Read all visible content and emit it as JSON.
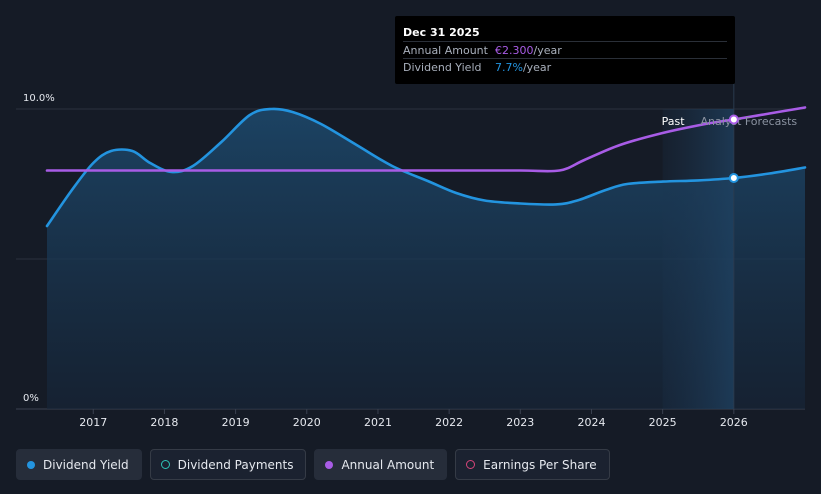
{
  "chart_data": {
    "type": "line",
    "y_tick_labels": [
      "10.0%",
      "0%"
    ],
    "ylim": [
      0,
      10
    ],
    "xlim": [
      2016.35,
      2027.0
    ],
    "x_tick_labels": [
      "2017",
      "2018",
      "2019",
      "2020",
      "2021",
      "2022",
      "2023",
      "2024",
      "2025",
      "2026"
    ],
    "x_tick_values": [
      2017,
      2018,
      2019,
      2020,
      2021,
      2022,
      2023,
      2024,
      2025,
      2026
    ],
    "past_label": "Past",
    "forecast_label": "Analyst Forecasts",
    "forecast_start": 2025.42,
    "series": [
      {
        "name": "Dividend Yield",
        "color": "#2394df",
        "fill": true,
        "points": [
          [
            2016.35,
            6.1
          ],
          [
            2016.7,
            7.3
          ],
          [
            2017.0,
            8.2
          ],
          [
            2017.25,
            8.6
          ],
          [
            2017.55,
            8.6
          ],
          [
            2017.8,
            8.2
          ],
          [
            2018.1,
            7.9
          ],
          [
            2018.4,
            8.1
          ],
          [
            2018.8,
            8.9
          ],
          [
            2019.2,
            9.8
          ],
          [
            2019.5,
            10.0
          ],
          [
            2019.8,
            9.9
          ],
          [
            2020.2,
            9.5
          ],
          [
            2020.7,
            8.8
          ],
          [
            2021.2,
            8.1
          ],
          [
            2021.7,
            7.6
          ],
          [
            2022.1,
            7.2
          ],
          [
            2022.5,
            6.95
          ],
          [
            2023.0,
            6.85
          ],
          [
            2023.5,
            6.82
          ],
          [
            2023.8,
            6.95
          ],
          [
            2024.2,
            7.3
          ],
          [
            2024.5,
            7.5
          ],
          [
            2025.0,
            7.58
          ],
          [
            2025.5,
            7.62
          ],
          [
            2026.0,
            7.7
          ],
          [
            2026.5,
            7.85
          ],
          [
            2027.0,
            8.05
          ]
        ]
      },
      {
        "name": "Annual Amount",
        "color": "#a85ce6",
        "fill": false,
        "points": [
          [
            2016.35,
            7.95
          ],
          [
            2017.0,
            7.95
          ],
          [
            2018.0,
            7.95
          ],
          [
            2019.0,
            7.95
          ],
          [
            2020.0,
            7.95
          ],
          [
            2021.0,
            7.95
          ],
          [
            2022.0,
            7.95
          ],
          [
            2023.0,
            7.95
          ],
          [
            2023.55,
            7.95
          ],
          [
            2023.9,
            8.3
          ],
          [
            2024.4,
            8.8
          ],
          [
            2025.0,
            9.2
          ],
          [
            2025.6,
            9.5
          ],
          [
            2026.0,
            9.65
          ],
          [
            2026.5,
            9.85
          ],
          [
            2027.0,
            10.05
          ]
        ]
      }
    ],
    "highlight": {
      "x": 2026.0,
      "yield_value": 7.7,
      "annual_value": 9.65
    }
  },
  "tooltip": {
    "date": "Dec 31 2025",
    "rows": [
      {
        "label": "Annual Amount",
        "value": "€2.300",
        "unit": "/year",
        "color": "#a85ce6"
      },
      {
        "label": "Dividend Yield",
        "value": "7.7%",
        "unit": "/year",
        "color": "#2394df"
      }
    ]
  },
  "legend": [
    {
      "label": "Dividend Yield",
      "color": "#2394df",
      "hollow": false,
      "active": true
    },
    {
      "label": "Dividend Payments",
      "color": "#2ec4b6",
      "hollow": true,
      "active": false
    },
    {
      "label": "Annual Amount",
      "color": "#a85ce6",
      "hollow": false,
      "active": true
    },
    {
      "label": "Earnings Per Share",
      "color": "#d6457a",
      "hollow": true,
      "active": false
    }
  ]
}
